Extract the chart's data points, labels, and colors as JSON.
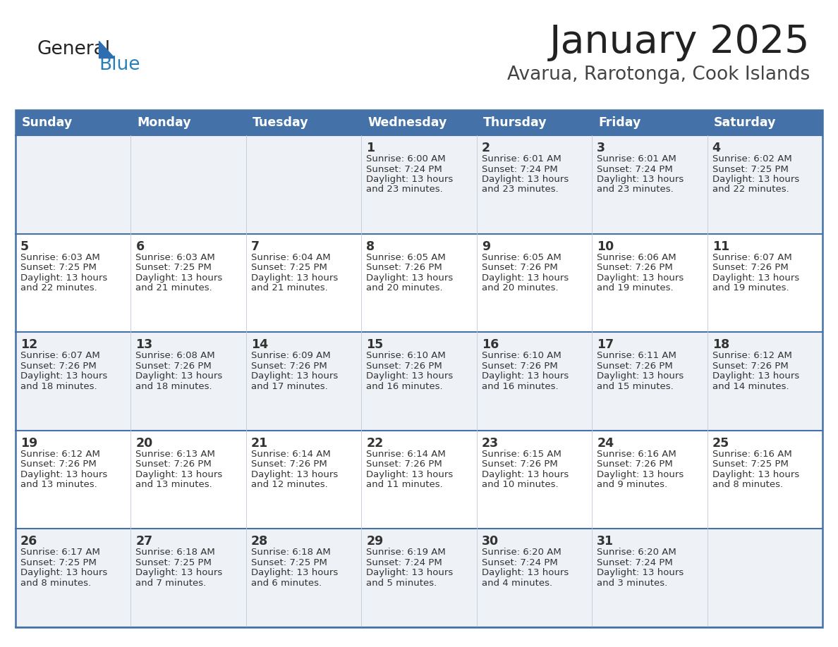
{
  "title": "January 2025",
  "subtitle": "Avarua, Rarotonga, Cook Islands",
  "header_color": "#4472a8",
  "header_text_color": "#ffffff",
  "day_names": [
    "Sunday",
    "Monday",
    "Tuesday",
    "Wednesday",
    "Thursday",
    "Friday",
    "Saturday"
  ],
  "background_color": "#ffffff",
  "cell_bg_even": "#eef1f5",
  "cell_bg_odd": "#ffffff",
  "row_border_color": "#4472a8",
  "col_border_color": "#c0c8d8",
  "text_color": "#333333",
  "title_color": "#222222",
  "subtitle_color": "#444444",
  "logo_color1": "#222222",
  "logo_color2": "#2980b9",
  "logo_triangle_color": "#2e6eb0",
  "days": [
    {
      "day": 1,
      "col": 3,
      "row": 0,
      "sunrise": "6:00 AM",
      "sunset": "7:24 PM",
      "daylight_h": "13 hours",
      "daylight_m": "23 minutes."
    },
    {
      "day": 2,
      "col": 4,
      "row": 0,
      "sunrise": "6:01 AM",
      "sunset": "7:24 PM",
      "daylight_h": "13 hours",
      "daylight_m": "23 minutes."
    },
    {
      "day": 3,
      "col": 5,
      "row": 0,
      "sunrise": "6:01 AM",
      "sunset": "7:24 PM",
      "daylight_h": "13 hours",
      "daylight_m": "23 minutes."
    },
    {
      "day": 4,
      "col": 6,
      "row": 0,
      "sunrise": "6:02 AM",
      "sunset": "7:25 PM",
      "daylight_h": "13 hours",
      "daylight_m": "22 minutes."
    },
    {
      "day": 5,
      "col": 0,
      "row": 1,
      "sunrise": "6:03 AM",
      "sunset": "7:25 PM",
      "daylight_h": "13 hours",
      "daylight_m": "22 minutes."
    },
    {
      "day": 6,
      "col": 1,
      "row": 1,
      "sunrise": "6:03 AM",
      "sunset": "7:25 PM",
      "daylight_h": "13 hours",
      "daylight_m": "21 minutes."
    },
    {
      "day": 7,
      "col": 2,
      "row": 1,
      "sunrise": "6:04 AM",
      "sunset": "7:25 PM",
      "daylight_h": "13 hours",
      "daylight_m": "21 minutes."
    },
    {
      "day": 8,
      "col": 3,
      "row": 1,
      "sunrise": "6:05 AM",
      "sunset": "7:26 PM",
      "daylight_h": "13 hours",
      "daylight_m": "20 minutes."
    },
    {
      "day": 9,
      "col": 4,
      "row": 1,
      "sunrise": "6:05 AM",
      "sunset": "7:26 PM",
      "daylight_h": "13 hours",
      "daylight_m": "20 minutes."
    },
    {
      "day": 10,
      "col": 5,
      "row": 1,
      "sunrise": "6:06 AM",
      "sunset": "7:26 PM",
      "daylight_h": "13 hours",
      "daylight_m": "19 minutes."
    },
    {
      "day": 11,
      "col": 6,
      "row": 1,
      "sunrise": "6:07 AM",
      "sunset": "7:26 PM",
      "daylight_h": "13 hours",
      "daylight_m": "19 minutes."
    },
    {
      "day": 12,
      "col": 0,
      "row": 2,
      "sunrise": "6:07 AM",
      "sunset": "7:26 PM",
      "daylight_h": "13 hours",
      "daylight_m": "18 minutes."
    },
    {
      "day": 13,
      "col": 1,
      "row": 2,
      "sunrise": "6:08 AM",
      "sunset": "7:26 PM",
      "daylight_h": "13 hours",
      "daylight_m": "18 minutes."
    },
    {
      "day": 14,
      "col": 2,
      "row": 2,
      "sunrise": "6:09 AM",
      "sunset": "7:26 PM",
      "daylight_h": "13 hours",
      "daylight_m": "17 minutes."
    },
    {
      "day": 15,
      "col": 3,
      "row": 2,
      "sunrise": "6:10 AM",
      "sunset": "7:26 PM",
      "daylight_h": "13 hours",
      "daylight_m": "16 minutes."
    },
    {
      "day": 16,
      "col": 4,
      "row": 2,
      "sunrise": "6:10 AM",
      "sunset": "7:26 PM",
      "daylight_h": "13 hours",
      "daylight_m": "16 minutes."
    },
    {
      "day": 17,
      "col": 5,
      "row": 2,
      "sunrise": "6:11 AM",
      "sunset": "7:26 PM",
      "daylight_h": "13 hours",
      "daylight_m": "15 minutes."
    },
    {
      "day": 18,
      "col": 6,
      "row": 2,
      "sunrise": "6:12 AM",
      "sunset": "7:26 PM",
      "daylight_h": "13 hours",
      "daylight_m": "14 minutes."
    },
    {
      "day": 19,
      "col": 0,
      "row": 3,
      "sunrise": "6:12 AM",
      "sunset": "7:26 PM",
      "daylight_h": "13 hours",
      "daylight_m": "13 minutes."
    },
    {
      "day": 20,
      "col": 1,
      "row": 3,
      "sunrise": "6:13 AM",
      "sunset": "7:26 PM",
      "daylight_h": "13 hours",
      "daylight_m": "13 minutes."
    },
    {
      "day": 21,
      "col": 2,
      "row": 3,
      "sunrise": "6:14 AM",
      "sunset": "7:26 PM",
      "daylight_h": "13 hours",
      "daylight_m": "12 minutes."
    },
    {
      "day": 22,
      "col": 3,
      "row": 3,
      "sunrise": "6:14 AM",
      "sunset": "7:26 PM",
      "daylight_h": "13 hours",
      "daylight_m": "11 minutes."
    },
    {
      "day": 23,
      "col": 4,
      "row": 3,
      "sunrise": "6:15 AM",
      "sunset": "7:26 PM",
      "daylight_h": "13 hours",
      "daylight_m": "10 minutes."
    },
    {
      "day": 24,
      "col": 5,
      "row": 3,
      "sunrise": "6:16 AM",
      "sunset": "7:26 PM",
      "daylight_h": "13 hours",
      "daylight_m": "9 minutes."
    },
    {
      "day": 25,
      "col": 6,
      "row": 3,
      "sunrise": "6:16 AM",
      "sunset": "7:25 PM",
      "daylight_h": "13 hours",
      "daylight_m": "8 minutes."
    },
    {
      "day": 26,
      "col": 0,
      "row": 4,
      "sunrise": "6:17 AM",
      "sunset": "7:25 PM",
      "daylight_h": "13 hours",
      "daylight_m": "8 minutes."
    },
    {
      "day": 27,
      "col": 1,
      "row": 4,
      "sunrise": "6:18 AM",
      "sunset": "7:25 PM",
      "daylight_h": "13 hours",
      "daylight_m": "7 minutes."
    },
    {
      "day": 28,
      "col": 2,
      "row": 4,
      "sunrise": "6:18 AM",
      "sunset": "7:25 PM",
      "daylight_h": "13 hours",
      "daylight_m": "6 minutes."
    },
    {
      "day": 29,
      "col": 3,
      "row": 4,
      "sunrise": "6:19 AM",
      "sunset": "7:24 PM",
      "daylight_h": "13 hours",
      "daylight_m": "5 minutes."
    },
    {
      "day": 30,
      "col": 4,
      "row": 4,
      "sunrise": "6:20 AM",
      "sunset": "7:24 PM",
      "daylight_h": "13 hours",
      "daylight_m": "4 minutes."
    },
    {
      "day": 31,
      "col": 5,
      "row": 4,
      "sunrise": "6:20 AM",
      "sunset": "7:24 PM",
      "daylight_h": "13 hours",
      "daylight_m": "3 minutes."
    }
  ]
}
